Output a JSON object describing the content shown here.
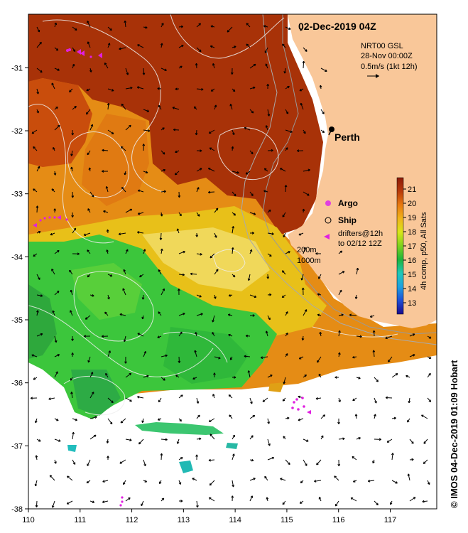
{
  "title": "02-Dec-2019 04Z",
  "currents": {
    "source": "NRT00 GSL",
    "date": "28-Nov 00:00Z",
    "scale": "0.5m/s (1kt 12h)"
  },
  "city": {
    "name": "Perth",
    "lon": 115.86,
    "lat": -31.95
  },
  "legend": {
    "argo": "Argo",
    "ship": "Ship",
    "drifters_line1": "drifters@12h",
    "drifters_line2": "to 02/12 12Z",
    "contour_200": "200m",
    "contour_1000": "1000m"
  },
  "colorbar": {
    "label": "4h comp, p50, All Sats",
    "ticks": [
      "13",
      "14",
      "15",
      "16",
      "17",
      "18",
      "19",
      "20",
      "21"
    ],
    "colors": [
      "#1a0a8c",
      "#1f4fd6",
      "#1fa0e0",
      "#20c8b8",
      "#1eb43c",
      "#7ed21e",
      "#d8e61a",
      "#f0b41a",
      "#e87a10",
      "#b83a0a",
      "#8c1a08"
    ]
  },
  "axes": {
    "x_ticks": [
      "110",
      "111",
      "112",
      "113",
      "114",
      "115",
      "116",
      "117"
    ],
    "y_ticks": [
      "-31",
      "-32",
      "-33",
      "-34",
      "-35",
      "-36",
      "-37",
      "-38"
    ],
    "lon_range": [
      110,
      117.9
    ],
    "lat_range": [
      -38,
      -30.15
    ]
  },
  "credit": "© IMOS 04-Dec-2019 01:09 Hobart",
  "colors": {
    "land": "#f9c799",
    "warm": "#a83208",
    "orange": "#e48a14",
    "yellow": "#e8c419",
    "green": "#3cc63c",
    "cyan": "#21c2b4",
    "argo": "#e040e0",
    "drifter": "#e020e0"
  }
}
